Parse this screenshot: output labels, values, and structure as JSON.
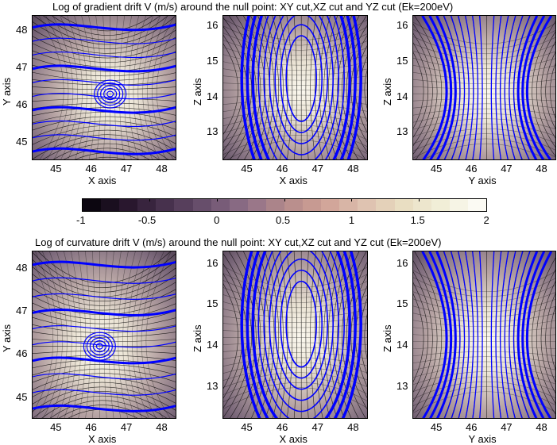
{
  "titles": {
    "top": "Log of gradient drift V (m/s) around the null point: XY cut,XZ cut and YZ cut (Ek=200eV)",
    "bottom": "Log of curvature drift V (m/s) around the null point: XY cut,XZ cut and YZ cut (Ek=200eV)"
  },
  "colorbar": {
    "ticks": [
      "-1",
      "-0.5",
      "0",
      "0.5",
      "1",
      "1.5",
      "2"
    ],
    "range": [
      -1,
      2
    ],
    "colors": [
      "#0c0610",
      "#2a1830",
      "#4a3450",
      "#6c5270",
      "#8f7088",
      "#b48a8a",
      "#cfa095",
      "#ddbfae",
      "#e8dcc0",
      "#f1edd6",
      "#fbfaf3"
    ]
  },
  "colors": {
    "field_lines": "#0000ff",
    "streamlines": "#000000",
    "background_light": "#ebe4d5",
    "background_dark": "#5a4a5c"
  },
  "chart_data": [
    {
      "type": "heatmap",
      "row": "gradient drift",
      "cut": "XY",
      "xlabel": "X axis",
      "ylabel": "Y axis",
      "xticks": [
        "45",
        "46",
        "47",
        "48"
      ],
      "yticks": [
        "45",
        "46",
        "47",
        "48"
      ],
      "xlim": [
        44.3,
        48.4
      ],
      "ylim": [
        44.5,
        48.4
      ],
      "center": [
        46.5,
        46.3
      ]
    },
    {
      "type": "heatmap",
      "row": "gradient drift",
      "cut": "XZ",
      "xlabel": "X axis",
      "ylabel": "Z axis",
      "xticks": [
        "45",
        "46",
        "47",
        "48"
      ],
      "yticks": [
        "13",
        "14",
        "15",
        "16"
      ],
      "xlim": [
        44.3,
        48.4
      ],
      "ylim": [
        12.2,
        16.3
      ],
      "center": [
        46.5,
        14.2
      ]
    },
    {
      "type": "heatmap",
      "row": "gradient drift",
      "cut": "YZ",
      "xlabel": "Y axis",
      "ylabel": "Z axis",
      "xticks": [
        "45",
        "46",
        "47",
        "48"
      ],
      "yticks": [
        "13",
        "14",
        "15",
        "16"
      ],
      "xlim": [
        44.3,
        48.4
      ],
      "ylim": [
        12.2,
        16.3
      ],
      "center": [
        46.4,
        14.1
      ]
    },
    {
      "type": "heatmap",
      "row": "curvature drift",
      "cut": "XY",
      "xlabel": "X axis",
      "ylabel": "Y axis",
      "xticks": [
        "45",
        "46",
        "47",
        "48"
      ],
      "yticks": [
        "45",
        "46",
        "47",
        "48"
      ],
      "xlim": [
        44.3,
        48.4
      ],
      "ylim": [
        44.5,
        48.4
      ],
      "center": [
        46.2,
        46.2
      ]
    },
    {
      "type": "heatmap",
      "row": "curvature drift",
      "cut": "XZ",
      "xlabel": "X axis",
      "ylabel": "Z axis",
      "xticks": [
        "45",
        "46",
        "47",
        "48"
      ],
      "yticks": [
        "13",
        "14",
        "15",
        "16"
      ],
      "xlim": [
        44.3,
        48.4
      ],
      "ylim": [
        12.2,
        16.3
      ],
      "center": [
        46.5,
        14.2
      ]
    },
    {
      "type": "heatmap",
      "row": "curvature drift",
      "cut": "YZ",
      "xlabel": "Y axis",
      "ylabel": "Z axis",
      "xticks": [
        "45",
        "46",
        "47",
        "48"
      ],
      "yticks": [
        "13",
        "14",
        "15",
        "16"
      ],
      "xlim": [
        44.3,
        48.4
      ],
      "ylim": [
        12.2,
        16.3
      ],
      "center": [
        46.4,
        14.1
      ]
    }
  ]
}
